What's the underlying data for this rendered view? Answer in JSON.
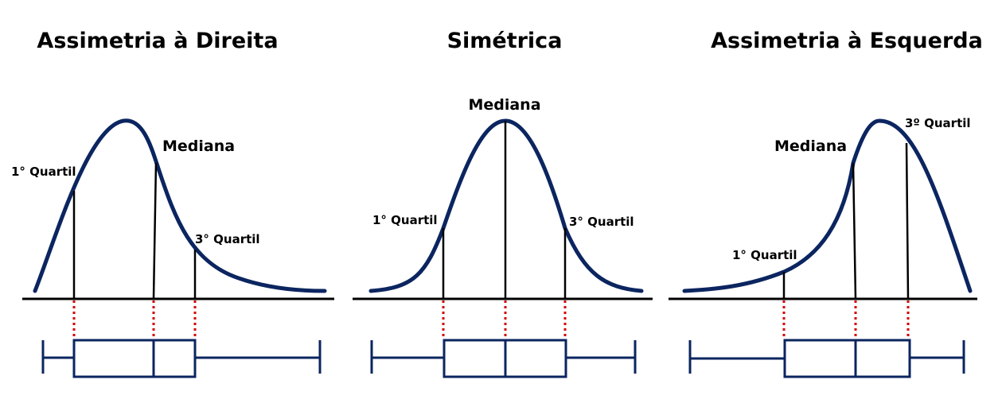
{
  "colors": {
    "curve": "#0b2560",
    "box": "#0b2560",
    "axis": "#000000",
    "guide": "#d40000"
  },
  "panels": [
    {
      "title": "Assimetria à Direita",
      "median_label": "Mediana",
      "q1_label": "1° Quartil",
      "q3_label": "3° Quartil"
    },
    {
      "title": "Simétrica",
      "median_label": "Mediana",
      "q1_label": "1° Quartil",
      "q3_label": "3° Quartil"
    },
    {
      "title": "Assimetria à Esquerda",
      "median_label": "Mediana",
      "q1_label": "1° Quartil",
      "q3_label": "3º Quartil"
    }
  ]
}
